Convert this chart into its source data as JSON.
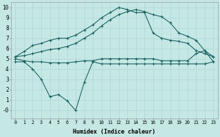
{
  "xlabel": "Humidex (Indice chaleur)",
  "background_color": "#c5e8e5",
  "grid_color": "#b0d8d5",
  "line_color": "#1a6060",
  "line_width": 0.8,
  "marker_size": 2.0,
  "xlim": [
    -0.5,
    23.5
  ],
  "ylim": [
    -0.8,
    10.5
  ],
  "xticks": [
    0,
    1,
    2,
    3,
    4,
    5,
    6,
    7,
    8,
    9,
    10,
    11,
    12,
    13,
    14,
    15,
    16,
    17,
    18,
    19,
    20,
    21,
    22,
    23
  ],
  "yticks": [
    0,
    1,
    2,
    3,
    4,
    5,
    6,
    7,
    8,
    9,
    10
  ],
  "ytick_labels": [
    "-0",
    "1",
    "2",
    "3",
    "4",
    "5",
    "6",
    "7",
    "8",
    "9",
    "10"
  ],
  "line_min": [
    4.7,
    4.7,
    4.0,
    3.0,
    1.3,
    1.5,
    0.9,
    -0.05,
    2.7,
    4.7,
    4.5,
    4.5,
    4.5,
    4.5,
    4.5,
    4.5,
    4.5,
    4.5,
    4.5,
    4.5,
    4.5,
    4.5,
    4.5,
    4.7
  ],
  "line_flat": [
    5.0,
    4.8,
    4.7,
    4.7,
    4.6,
    4.6,
    4.6,
    4.7,
    4.8,
    4.8,
    5.0,
    5.0,
    5.0,
    5.0,
    5.0,
    5.0,
    5.0,
    4.8,
    4.8,
    4.8,
    4.8,
    5.5,
    5.8,
    4.7
  ],
  "line_mean": [
    5.2,
    5.3,
    5.5,
    5.7,
    5.9,
    6.0,
    6.2,
    6.5,
    7.0,
    7.5,
    8.2,
    8.8,
    9.3,
    9.6,
    9.8,
    9.6,
    9.3,
    9.1,
    8.5,
    7.5,
    7.2,
    6.8,
    5.8,
    5.2
  ],
  "line_max": [
    5.2,
    5.7,
    6.3,
    6.5,
    6.8,
    7.0,
    7.0,
    7.3,
    7.8,
    8.3,
    9.0,
    9.5,
    10.0,
    9.8,
    9.5,
    9.5,
    7.5,
    7.0,
    6.8,
    6.7,
    6.5,
    5.8,
    5.5,
    5.2
  ]
}
